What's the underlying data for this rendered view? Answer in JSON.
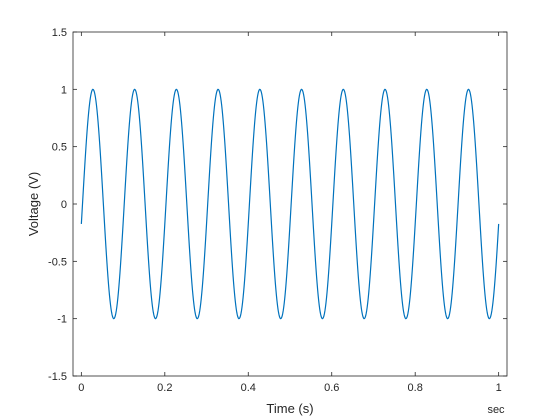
{
  "chart_data": {
    "type": "line",
    "title": "",
    "xlabel": "Time (s)",
    "ylabel": "Voltage (V)",
    "x_unit_label": "sec",
    "xlim": [
      -0.02,
      1.02
    ],
    "ylim": [
      -1.5,
      1.5
    ],
    "x_ticks": [
      0,
      0.2,
      0.4,
      0.6,
      0.8,
      1
    ],
    "x_tick_labels": [
      "0",
      "0.2",
      "0.4",
      "0.6",
      "0.8",
      "1"
    ],
    "y_ticks": [
      -1.5,
      -1,
      -0.5,
      0,
      0.5,
      1,
      1.5
    ],
    "y_tick_labels": [
      "-1.5",
      "-1",
      "-0.5",
      "0",
      "0.5",
      "1",
      "1.5"
    ],
    "grid": false,
    "legend": null,
    "series": [
      {
        "color": "#0072BD",
        "function": "sine",
        "amplitude": 1,
        "frequency_hz": 10,
        "phase_deg": -10,
        "x_range": [
          0,
          1
        ]
      }
    ]
  }
}
